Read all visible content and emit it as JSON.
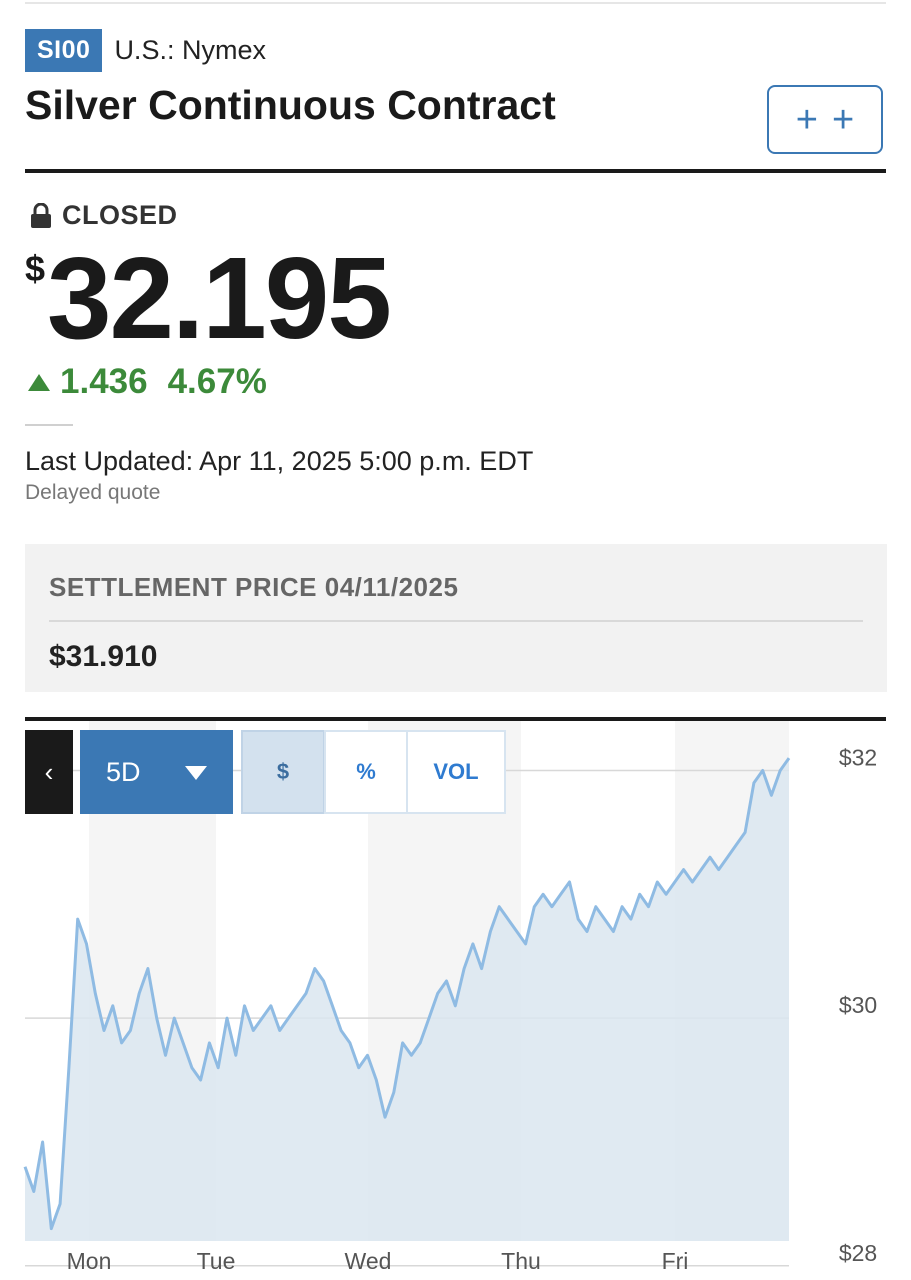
{
  "header": {
    "ticker": "SI00",
    "exchange": "U.S.: Nymex",
    "title": "Silver Continuous Contract",
    "watch_button_icon": "plus-plus-icon"
  },
  "quote": {
    "status": "CLOSED",
    "status_icon": "lock-icon",
    "currency_symbol": "$",
    "price": "32.195",
    "change": "1.436",
    "change_percent": "4.67%",
    "direction": "up",
    "last_updated": "Last Updated: Apr 11, 2025 5:00 p.m. EDT",
    "delayed": "Delayed quote"
  },
  "settlement": {
    "label": "SETTLEMENT PRICE 04/11/2025",
    "value": "$31.910"
  },
  "chart_controls": {
    "back_icon": "chevron-left-icon",
    "range": "5D",
    "modes": [
      "$",
      "%",
      "VOL"
    ],
    "active_mode": "$"
  },
  "colors": {
    "brand_blue": "#3b78b4",
    "positive_green": "#3c8a3a",
    "line": "#8fbbe3",
    "fill": "#dbe6f0"
  },
  "chart_data": {
    "type": "area",
    "title": "",
    "xlabel": "",
    "ylabel": "",
    "x_ticks": [
      "Mon",
      "Tue",
      "Wed",
      "Thu",
      "Fri"
    ],
    "y_ticks": [
      "$28",
      "$30",
      "$32"
    ],
    "ylim": [
      28.2,
      32.4
    ],
    "grid": "horizontal",
    "series": [
      {
        "values": [
          28.8,
          28.6,
          29.0,
          28.3,
          28.5,
          29.6,
          30.8,
          30.6,
          30.2,
          29.9,
          30.1,
          29.8,
          29.9,
          30.2,
          30.4,
          30.0,
          29.7,
          30.0,
          29.8,
          29.6,
          29.5,
          29.8,
          29.6,
          30.0,
          29.7,
          30.1,
          29.9,
          30.0,
          30.1,
          29.9,
          30.0,
          30.1,
          30.2,
          30.4,
          30.3,
          30.1,
          29.9,
          29.8,
          29.6,
          29.7,
          29.5,
          29.2,
          29.4,
          29.8,
          29.7,
          29.8,
          30.0,
          30.2,
          30.3,
          30.1,
          30.4,
          30.6,
          30.4,
          30.7,
          30.9,
          30.8,
          30.7,
          30.6,
          30.9,
          31.0,
          30.9,
          31.0,
          31.1,
          30.8,
          30.7,
          30.9,
          30.8,
          30.7,
          30.9,
          30.8,
          31.0,
          30.9,
          31.1,
          31.0,
          31.1,
          31.2,
          31.1,
          31.2,
          31.3,
          31.2,
          31.3,
          31.4,
          31.5,
          31.9,
          32.0,
          31.8,
          32.0,
          32.1
        ],
        "color": "#8fbbe3"
      }
    ]
  }
}
